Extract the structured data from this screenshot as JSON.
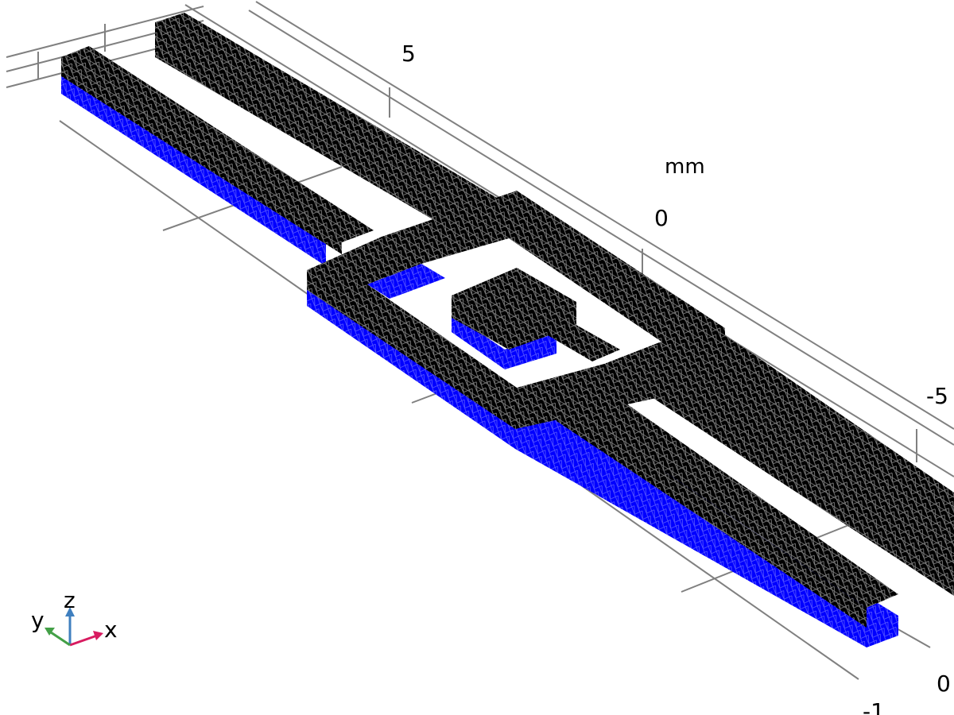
{
  "axis": {
    "unit": "mm",
    "ticks": {
      "y_five": "5",
      "y_zero": "0",
      "y_minus_five": "-5",
      "x_zero": "0",
      "z_minus_one": "-1"
    }
  },
  "triad": {
    "x_label": "x",
    "y_label": "y",
    "z_label": "z",
    "x_color": "#d81b60",
    "y_color": "#43a047",
    "z_color": "#3f7fbf"
  },
  "colors": {
    "background": "#ffffff",
    "mesh_body": "#000000",
    "mesh_wire": "#8a8a8a",
    "highlight": "#0000ff",
    "highlight_wire": "#5a5aff",
    "grid_line": "#808080"
  }
}
